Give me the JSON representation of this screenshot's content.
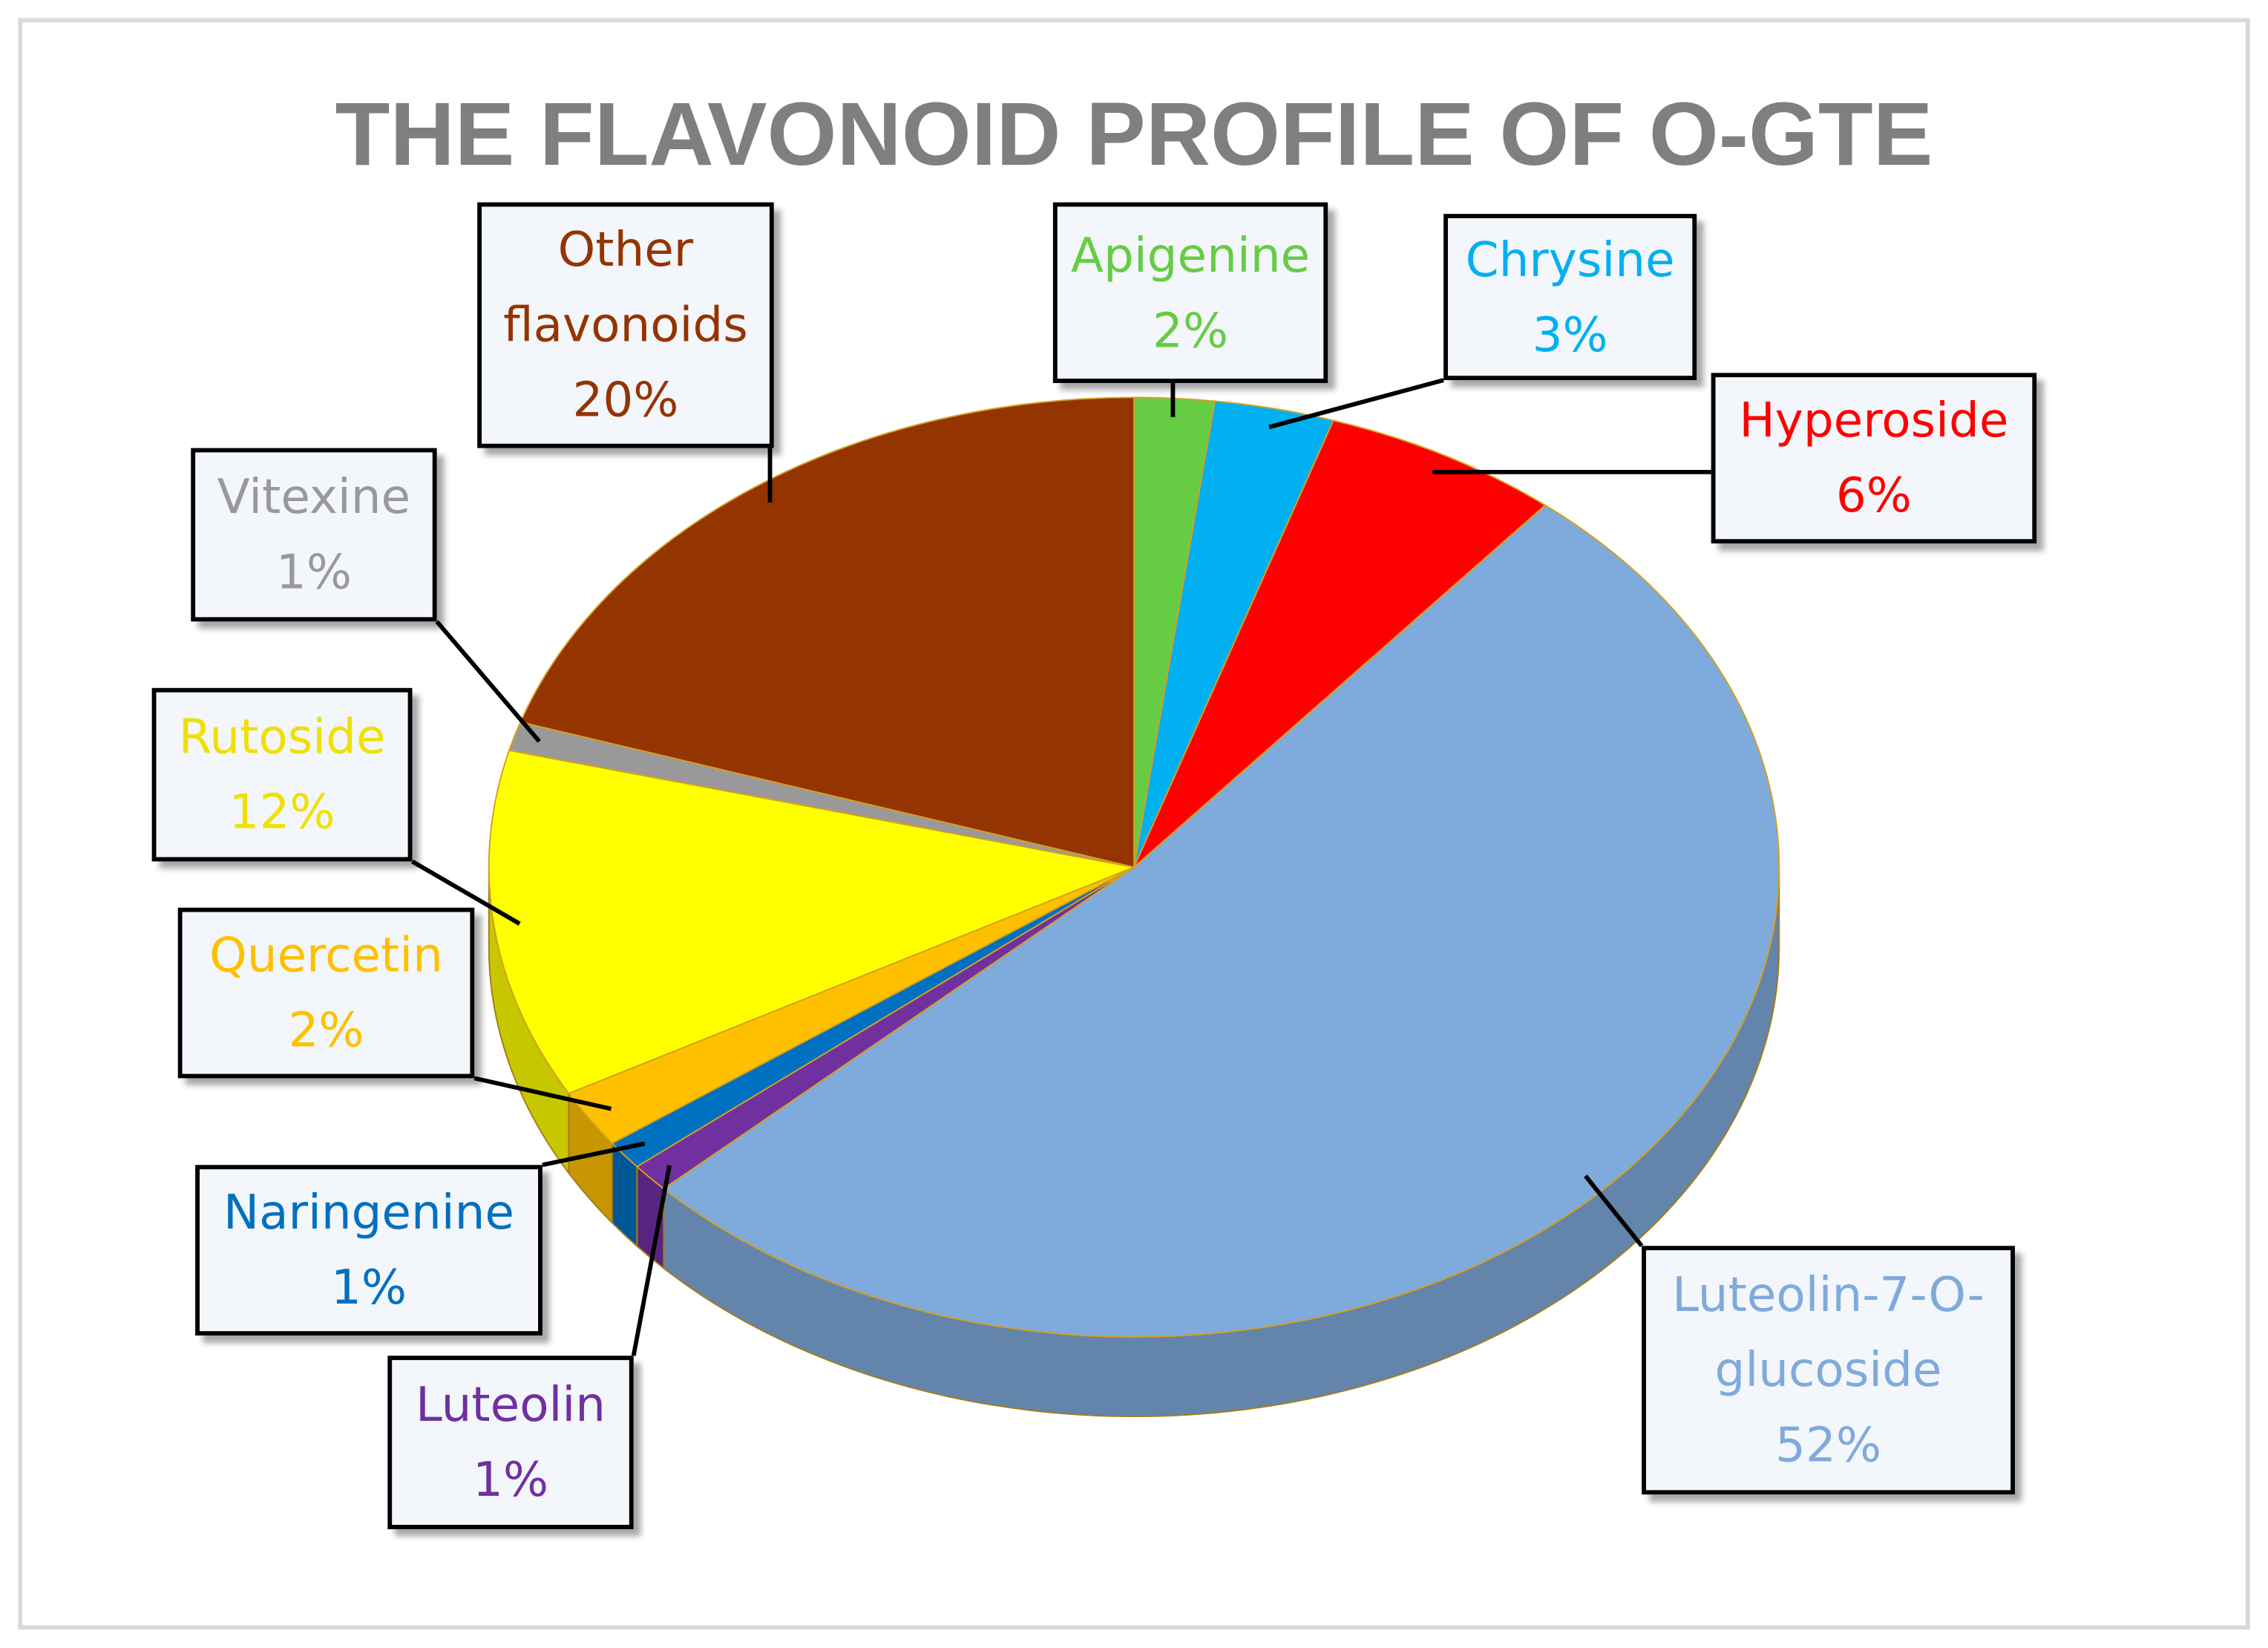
{
  "chart_data": {
    "type": "pie",
    "title": "THE FLAVONOID PROFILE OF O-GTE",
    "categories": [
      "Apigenine",
      "Chrysine",
      "Hyperoside",
      "Luteolin-7-O-glucoside",
      "Luteolin",
      "Naringenine",
      "Quercetin",
      "Rutoside",
      "Vitexine",
      "Other flavonoids"
    ],
    "values": [
      2,
      3,
      6,
      52,
      1,
      1,
      2,
      12,
      1,
      20
    ],
    "value_labels": [
      "2%",
      "3%",
      "6%",
      "52%",
      "1%",
      "1%",
      "2%",
      "12%",
      "1%",
      "20%"
    ],
    "colors": [
      "#66cc44",
      "#00b0f0",
      "#ff0000",
      "#7faadc",
      "#7030a0",
      "#0070c0",
      "#ffc000",
      "#ffff00",
      "#999999",
      "#943400"
    ]
  }
}
